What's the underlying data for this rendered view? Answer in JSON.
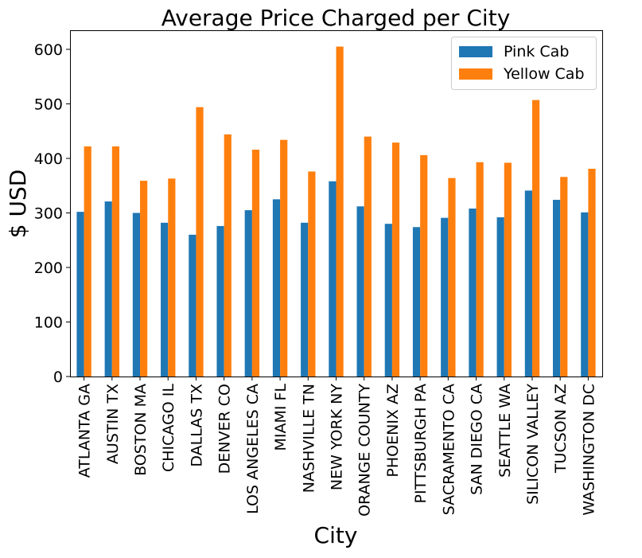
{
  "chart_data": {
    "type": "bar",
    "title": "Average Price Charged per City",
    "xlabel": "City",
    "ylabel": "$ USD",
    "ylim": [
      0,
      635
    ],
    "yticks": [
      0,
      100,
      200,
      300,
      400,
      500,
      600
    ],
    "legend_position": "top-right",
    "grid": false,
    "categories": [
      "ATLANTA GA",
      "AUSTIN TX",
      "BOSTON MA",
      "CHICAGO IL",
      "DALLAS TX",
      "DENVER CO",
      "LOS ANGELES CA",
      "MIAMI FL",
      "NASHVILLE TN",
      "NEW YORK NY",
      "ORANGE COUNTY",
      "PHOENIX AZ",
      "PITTSBURGH PA",
      "SACRAMENTO CA",
      "SAN DIEGO CA",
      "SEATTLE WA",
      "SILICON VALLEY",
      "TUCSON AZ",
      "WASHINGTON DC"
    ],
    "series": [
      {
        "name": "Pink Cab",
        "color": "#1f77b4",
        "values": [
          302,
          321,
          300,
          282,
          260,
          276,
          305,
          325,
          282,
          358,
          312,
          280,
          274,
          291,
          308,
          292,
          341,
          324,
          301
        ]
      },
      {
        "name": "Yellow Cab",
        "color": "#ff7f0e",
        "values": [
          422,
          422,
          359,
          363,
          494,
          444,
          416,
          434,
          376,
          605,
          440,
          429,
          406,
          364,
          393,
          392,
          507,
          366,
          381
        ]
      }
    ]
  }
}
